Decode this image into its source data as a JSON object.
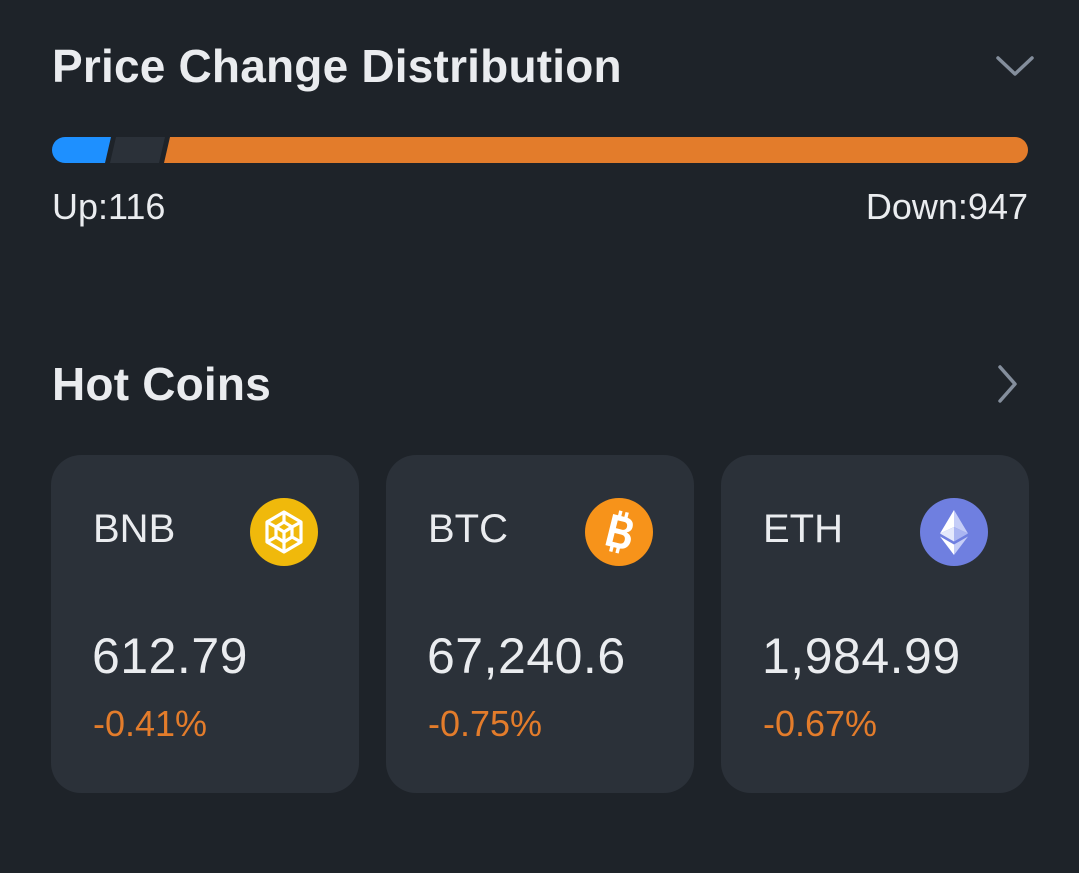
{
  "price_change_distribution": {
    "title": "Price Change Distribution",
    "collapse_icon": "chevron-down-icon",
    "up_label": "Up:116",
    "down_label": "Down:947",
    "up_count": 116,
    "down_count": 947,
    "up_color": "#1e90ff",
    "neutral_color": "#2b3139",
    "down_color": "#e37c2b"
  },
  "hot_coins": {
    "title": "Hot Coins",
    "more_icon": "chevron-right-icon",
    "coins": [
      {
        "symbol": "BNB",
        "price": "612.79",
        "change": "-0.41%",
        "logo_icon": "bnb-logo-icon",
        "logo_color": "#f0b90b"
      },
      {
        "symbol": "BTC",
        "price": "67,240.6",
        "change": "-0.75%",
        "logo_icon": "btc-logo-icon",
        "logo_color": "#f7931a"
      },
      {
        "symbol": "ETH",
        "price": "1,984.99",
        "change": "-0.67%",
        "logo_icon": "eth-logo-icon",
        "logo_color": "#6f7fe0"
      }
    ],
    "negative_color": "#e37c2b"
  }
}
